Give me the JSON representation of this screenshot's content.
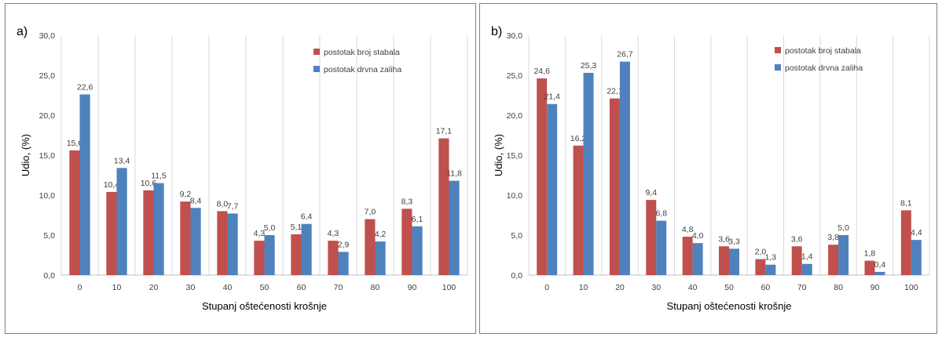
{
  "chart_data": [
    {
      "type": "bar",
      "panel_label": "a)",
      "categories": [
        "0",
        "10",
        "20",
        "30",
        "40",
        "50",
        "60",
        "70",
        "80",
        "90",
        "100"
      ],
      "series": [
        {
          "name": "postotak broj stabala",
          "color": "#c0504d",
          "values": [
            15.6,
            10.4,
            10.6,
            9.2,
            8.0,
            4.3,
            5.1,
            4.3,
            7.0,
            8.3,
            17.1
          ],
          "labels": [
            "15,6",
            "10,4",
            "10,6",
            "9,2",
            "8,0",
            "4,3",
            "5,1",
            "4,3",
            "7,0",
            "8,3",
            "17,1"
          ]
        },
        {
          "name": "postotak drvna zaliha",
          "color": "#4f81bd",
          "values": [
            22.6,
            13.4,
            11.5,
            8.4,
            7.7,
            5.0,
            6.4,
            2.9,
            4.2,
            6.1,
            11.8
          ],
          "labels": [
            "22,6",
            "13,4",
            "11,5",
            "8,4",
            "7,7",
            "5,0",
            "6,4",
            "2,9",
            "4,2",
            "6,1",
            "11,8"
          ]
        }
      ],
      "xlabel": "Stupanj oštećenosti krošnje",
      "ylabel": "Udio, (%)",
      "ylim": [
        0,
        30
      ],
      "yticks": [
        0,
        5,
        10,
        15,
        20,
        25,
        30
      ],
      "ytick_labels": [
        "0,0",
        "5,0",
        "10,0",
        "15,0",
        "20,0",
        "25,0",
        "30,0"
      ],
      "grid": "vertical",
      "legend": "top-right"
    },
    {
      "type": "bar",
      "panel_label": "b)",
      "categories": [
        "0",
        "10",
        "20",
        "30",
        "40",
        "50",
        "60",
        "70",
        "80",
        "90",
        "100"
      ],
      "series": [
        {
          "name": "postotak broj stabala",
          "color": "#c0504d",
          "values": [
            24.6,
            16.2,
            22.1,
            9.4,
            4.8,
            3.6,
            2.0,
            3.6,
            3.8,
            1.8,
            8.1
          ],
          "labels": [
            "24,6",
            "16,2",
            "22,1",
            "9,4",
            "4,8",
            "3,6",
            "2,0",
            "3,6",
            "3,8",
            "1,8",
            "8,1"
          ]
        },
        {
          "name": "postotak drvna zaliha",
          "color": "#4f81bd",
          "values": [
            21.4,
            25.3,
            26.7,
            6.8,
            4.0,
            3.3,
            1.3,
            1.4,
            5.0,
            0.4,
            4.4
          ],
          "labels": [
            "21,4",
            "25,3",
            "26,7",
            "6,8",
            "4,0",
            "3,3",
            "1,3",
            "1,4",
            "5,0",
            "0,4",
            "4,4"
          ]
        }
      ],
      "xlabel": "Stupanj oštećenosti krošnje",
      "ylabel": "Udio, (%)",
      "ylim": [
        0,
        30
      ],
      "yticks": [
        0,
        5,
        10,
        15,
        20,
        25,
        30
      ],
      "ytick_labels": [
        "0,0",
        "5,0",
        "10,0",
        "15,0",
        "20,0",
        "25,0",
        "30,0"
      ],
      "grid": "vertical",
      "legend": "top-right"
    }
  ]
}
